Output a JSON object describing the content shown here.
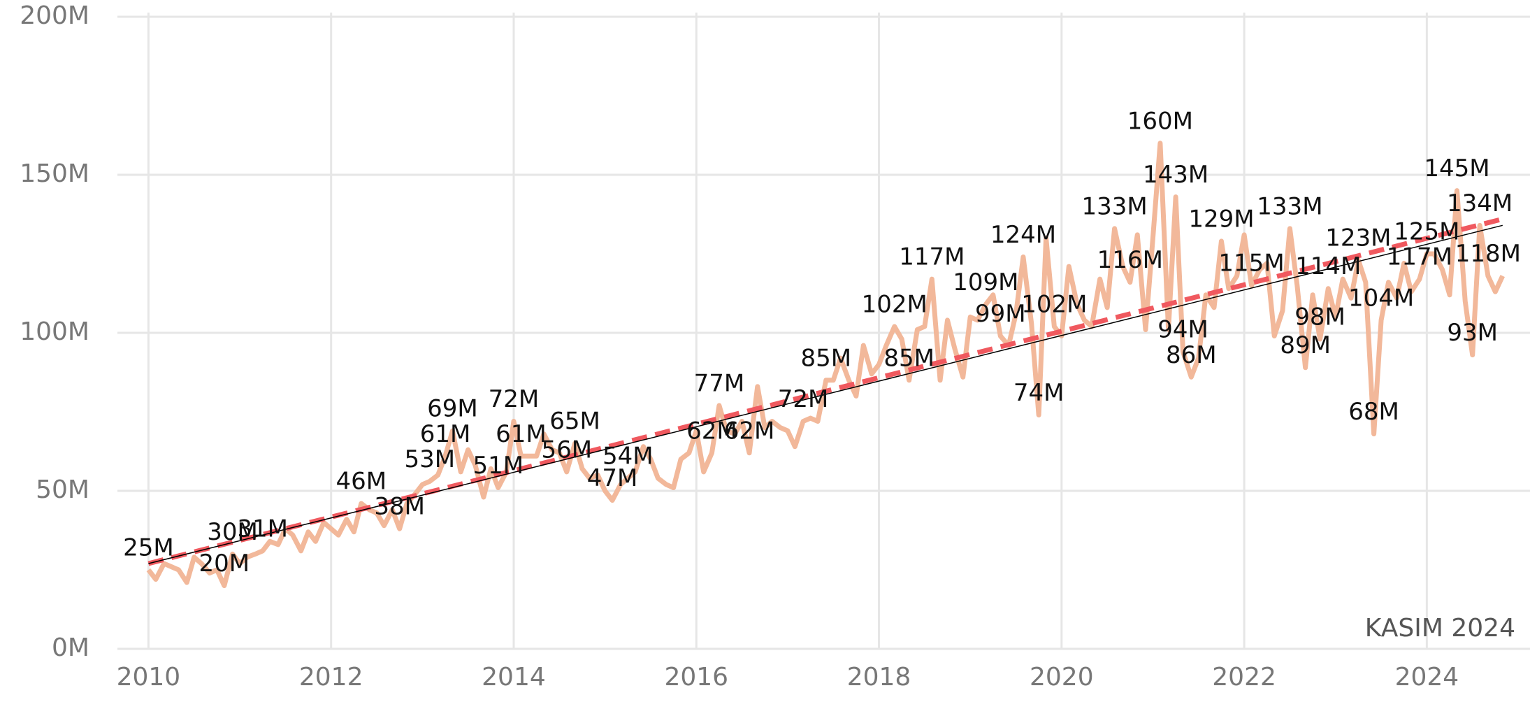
{
  "chart_data": {
    "type": "line",
    "annotation": "KASIM 2024",
    "xlim": [
      2009.66,
      2025.13
    ],
    "xticks": [
      2010,
      2012,
      2014,
      2016,
      2018,
      2020,
      2022,
      2024
    ],
    "ylim": [
      0,
      200
    ],
    "yticks": [
      {
        "value": 0,
        "label": "0M"
      },
      {
        "value": 50,
        "label": "50M"
      },
      {
        "value": 100,
        "label": "100M"
      },
      {
        "value": 150,
        "label": "150M"
      },
      {
        "value": 200,
        "label": "200M"
      }
    ],
    "grid": true,
    "x": [
      2010,
      2010.08,
      2010.17,
      2010.25,
      2010.33,
      2010.42,
      2010.5,
      2010.58,
      2010.67,
      2010.75,
      2010.83,
      2010.92,
      2011,
      2011.08,
      2011.17,
      2011.25,
      2011.33,
      2011.42,
      2011.5,
      2011.58,
      2011.67,
      2011.75,
      2011.83,
      2011.92,
      2012,
      2012.08,
      2012.17,
      2012.25,
      2012.33,
      2012.42,
      2012.5,
      2012.58,
      2012.67,
      2012.75,
      2012.83,
      2012.92,
      2013,
      2013.08,
      2013.17,
      2013.25,
      2013.33,
      2013.42,
      2013.5,
      2013.58,
      2013.67,
      2013.75,
      2013.83,
      2013.92,
      2014,
      2014.08,
      2014.17,
      2014.25,
      2014.33,
      2014.42,
      2014.5,
      2014.58,
      2014.67,
      2014.75,
      2014.83,
      2014.92,
      2015,
      2015.08,
      2015.17,
      2015.25,
      2015.33,
      2015.42,
      2015.5,
      2015.58,
      2015.67,
      2015.75,
      2015.83,
      2015.92,
      2016,
      2016.08,
      2016.17,
      2016.25,
      2016.33,
      2016.42,
      2016.5,
      2016.58,
      2016.67,
      2016.75,
      2016.83,
      2016.92,
      2017,
      2017.08,
      2017.17,
      2017.25,
      2017.33,
      2017.42,
      2017.5,
      2017.58,
      2017.67,
      2017.75,
      2017.83,
      2017.92,
      2018,
      2018.08,
      2018.17,
      2018.25,
      2018.33,
      2018.42,
      2018.5,
      2018.58,
      2018.67,
      2018.75,
      2018.83,
      2018.92,
      2019,
      2019.08,
      2019.17,
      2019.25,
      2019.33,
      2019.42,
      2019.5,
      2019.58,
      2019.67,
      2019.75,
      2019.83,
      2019.92,
      2020,
      2020.08,
      2020.17,
      2020.25,
      2020.33,
      2020.42,
      2020.5,
      2020.58,
      2020.67,
      2020.75,
      2020.83,
      2020.92,
      2021,
      2021.08,
      2021.17,
      2021.25,
      2021.33,
      2021.42,
      2021.5,
      2021.58,
      2021.67,
      2021.75,
      2021.83,
      2021.92,
      2022,
      2022.08,
      2022.17,
      2022.25,
      2022.33,
      2022.42,
      2022.5,
      2022.58,
      2022.67,
      2022.75,
      2022.83,
      2022.92,
      2023,
      2023.08,
      2023.17,
      2023.25,
      2023.33,
      2023.42,
      2023.5,
      2023.58,
      2023.67,
      2023.75,
      2023.83,
      2023.92,
      2024,
      2024.08,
      2024.17,
      2024.25,
      2024.33,
      2024.42,
      2024.5,
      2024.58,
      2024.67,
      2024.75,
      2024.83
    ],
    "series": [
      {
        "color": "#f2b89a",
        "values": [
          25,
          22,
          27,
          26,
          25,
          21,
          29,
          27,
          24,
          25,
          20,
          30,
          27,
          29,
          30,
          31,
          34,
          33,
          38,
          36,
          31,
          37,
          34,
          40,
          38,
          36,
          41,
          37,
          46,
          44,
          43,
          39,
          44,
          38,
          46,
          49,
          52,
          53,
          55,
          61,
          69,
          56,
          63,
          58,
          48,
          57,
          51,
          56,
          72,
          61,
          61,
          61,
          68,
          63,
          62,
          56,
          65,
          57,
          54,
          55,
          50,
          47,
          52,
          54,
          56,
          64,
          60,
          54,
          52,
          51,
          60,
          62,
          69,
          56,
          62,
          77,
          69,
          68,
          72,
          62,
          83,
          70,
          72,
          70,
          69,
          64,
          72,
          73,
          72,
          85,
          85,
          92,
          85,
          80,
          96,
          87,
          90,
          96,
          102,
          98,
          85,
          101,
          102,
          117,
          85,
          104,
          95,
          86,
          105,
          104,
          109,
          112,
          99,
          96,
          106,
          124,
          103,
          74,
          130,
          102,
          99,
          121,
          109,
          104,
          102,
          117,
          108,
          133,
          121,
          116,
          131,
          101,
          130,
          160,
          101,
          143,
          94,
          86,
          92,
          112,
          108,
          129,
          114,
          118,
          131,
          115,
          120,
          122,
          99,
          107,
          133,
          115,
          89,
          112,
          98,
          114,
          105,
          117,
          111,
          123,
          116,
          68,
          104,
          116,
          111,
          122,
          113,
          117,
          125,
          125,
          120,
          112,
          145,
          110,
          93,
          134,
          118,
          113,
          118
        ],
        "value_labels": [
          "25M",
          null,
          null,
          null,
          null,
          null,
          null,
          null,
          null,
          null,
          "20M",
          "30M",
          null,
          null,
          null,
          "31M",
          null,
          null,
          null,
          null,
          null,
          null,
          null,
          null,
          null,
          null,
          null,
          null,
          "46M",
          null,
          null,
          null,
          null,
          "38M",
          null,
          null,
          null,
          "53M",
          null,
          "61M",
          "69M",
          null,
          null,
          null,
          null,
          null,
          "51M",
          null,
          "72M",
          "61M",
          null,
          null,
          null,
          null,
          null,
          "56M",
          "65M",
          null,
          null,
          null,
          null,
          "47M",
          null,
          "54M",
          null,
          null,
          null,
          null,
          null,
          null,
          null,
          null,
          null,
          null,
          "62M",
          "77M",
          null,
          null,
          null,
          "62M",
          null,
          null,
          null,
          null,
          null,
          null,
          "72M",
          null,
          null,
          "85M",
          null,
          null,
          null,
          null,
          null,
          null,
          null,
          null,
          "102M",
          null,
          "85M",
          null,
          null,
          "117M",
          null,
          null,
          null,
          null,
          null,
          null,
          "109M",
          null,
          "99M",
          null,
          null,
          "124M",
          null,
          "74M",
          null,
          "102M",
          null,
          null,
          null,
          null,
          null,
          null,
          null,
          "133M",
          null,
          "116M",
          null,
          null,
          null,
          "160M",
          null,
          "143M",
          "94M",
          "86M",
          null,
          null,
          null,
          "129M",
          null,
          null,
          null,
          "115M",
          null,
          null,
          null,
          null,
          "133M",
          null,
          "89M",
          null,
          "98M",
          "114M",
          null,
          null,
          null,
          "123M",
          null,
          "68M",
          "104M",
          null,
          null,
          null,
          null,
          "117M",
          "125M",
          null,
          null,
          null,
          "145M",
          null,
          "93M",
          "134M",
          "118M",
          null,
          null
        ]
      }
    ],
    "trend_x": [
      2010,
      2024.83
    ],
    "trend_lines": [
      {
        "color": "#f0595f",
        "dashed": true,
        "values": [
          27,
          136
        ]
      },
      {
        "color": "#000000",
        "dashed": false,
        "values": [
          27,
          134
        ]
      }
    ]
  }
}
